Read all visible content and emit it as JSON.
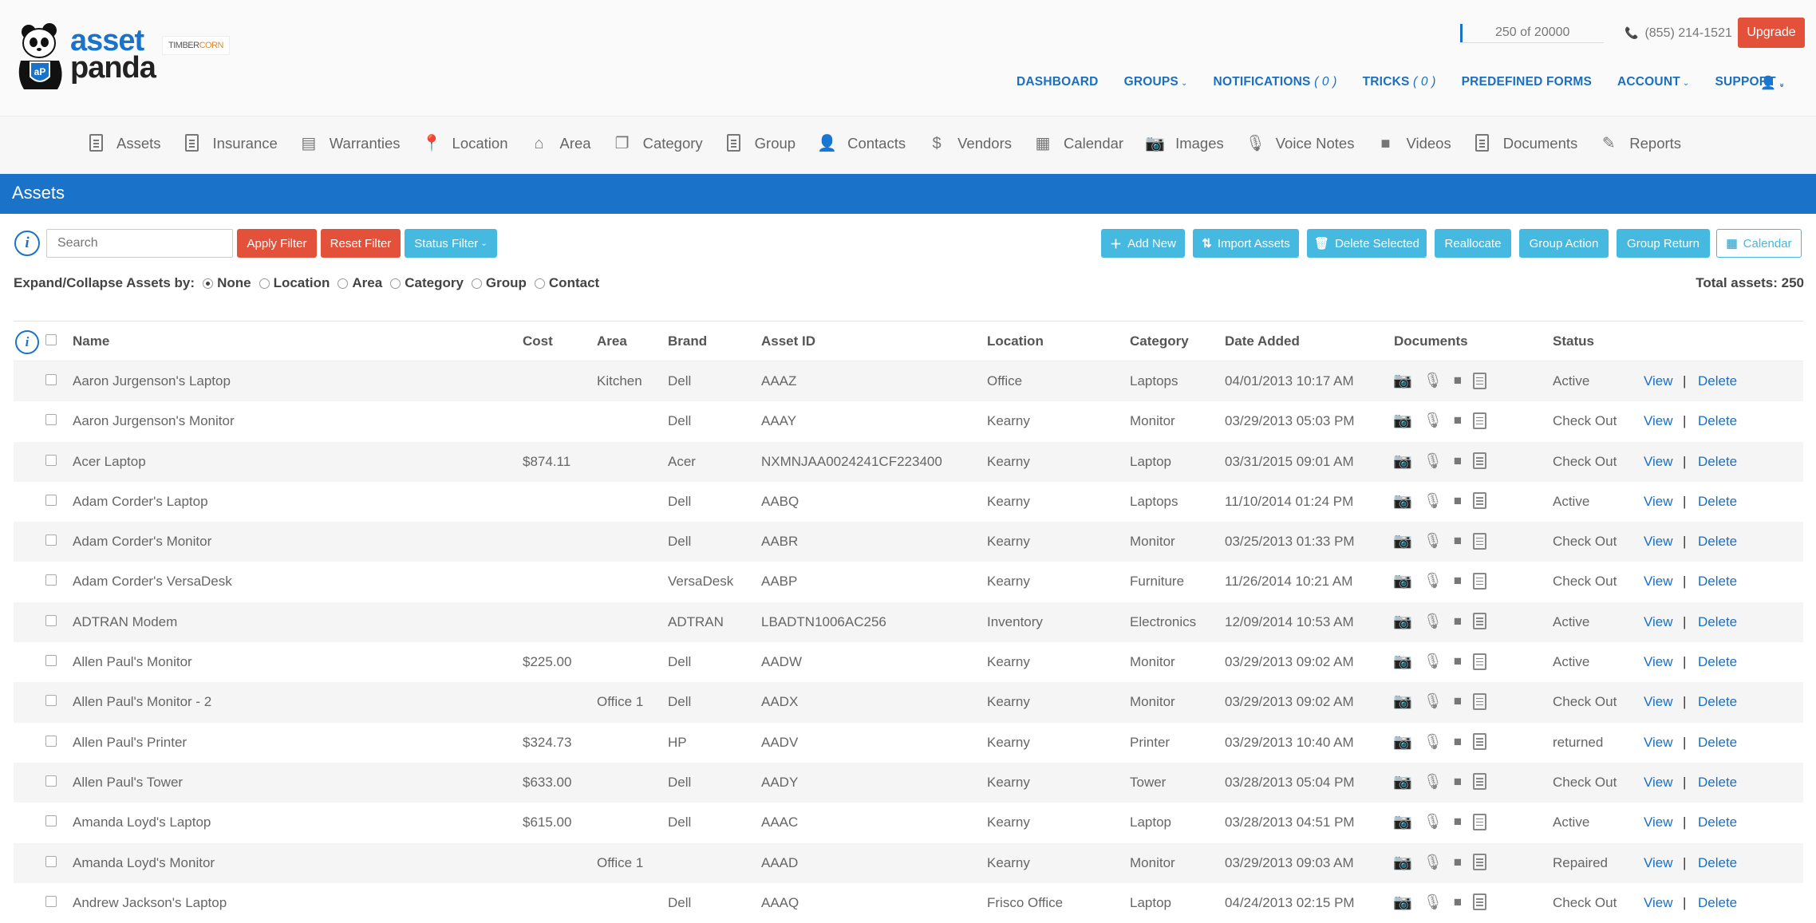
{
  "brand": {
    "asset": "asset",
    "panda": "panda",
    "partner_a": "TIMBER",
    "partner_b": "CORN"
  },
  "header": {
    "usage": "250 of 20000",
    "phone": "(855) 214-1521",
    "upgrade": "Upgrade"
  },
  "topnav": [
    {
      "label": "DASHBOARD",
      "count": "",
      "chevron": false
    },
    {
      "label": "GROUPS",
      "count": "",
      "chevron": true
    },
    {
      "label": "NOTIFICATIONS",
      "count": "( 0 )",
      "chevron": false
    },
    {
      "label": "TRICKS",
      "count": "( 0 )",
      "chevron": false
    },
    {
      "label": "PREDEFINED FORMS",
      "count": "",
      "chevron": false
    },
    {
      "label": "ACCOUNT",
      "count": "",
      "chevron": true
    },
    {
      "label": "SUPPORT",
      "count": "",
      "chevron": true
    }
  ],
  "modules": [
    {
      "label": "Assets",
      "icon": "document-icon"
    },
    {
      "label": "Insurance",
      "icon": "document-icon"
    },
    {
      "label": "Warranties",
      "icon": "certificate-icon"
    },
    {
      "label": "Location",
      "icon": "map-marker-icon"
    },
    {
      "label": "Area",
      "icon": "home-icon"
    },
    {
      "label": "Category",
      "icon": "category-icon"
    },
    {
      "label": "Group",
      "icon": "document-icon"
    },
    {
      "label": "Contacts",
      "icon": "user-icon"
    },
    {
      "label": "Vendors",
      "icon": "dollar-icon"
    },
    {
      "label": "Calendar",
      "icon": "calendar-icon"
    },
    {
      "label": "Images",
      "icon": "camera-icon"
    },
    {
      "label": "Voice Notes",
      "icon": "microphone-icon"
    },
    {
      "label": "Videos",
      "icon": "video-icon"
    },
    {
      "label": "Documents",
      "icon": "document-icon"
    },
    {
      "label": "Reports",
      "icon": "edit-icon"
    }
  ],
  "page_title": "Assets",
  "toolbar": {
    "search_placeholder": "Search",
    "apply_filter": "Apply Filter",
    "reset_filter": "Reset Filter",
    "status_filter": "Status Filter",
    "add_new": "Add New",
    "import_assets": "Import Assets",
    "delete_selected": "Delete Selected",
    "reallocate": "Reallocate",
    "group_action": "Group Action",
    "group_return": "Group Return",
    "calendar": "Calendar"
  },
  "expand": {
    "label": "Expand/Collapse Assets by:",
    "options": [
      "None",
      "Location",
      "Area",
      "Category",
      "Group",
      "Contact"
    ],
    "selected": "None"
  },
  "total": "Total assets: 250",
  "columns": [
    "Name",
    "Cost",
    "Area",
    "Brand",
    "Asset ID",
    "Location",
    "Category",
    "Date Added",
    "Documents",
    "Status"
  ],
  "actions": {
    "view": "View",
    "sep": "|",
    "delete": "Delete"
  },
  "rows": [
    {
      "name": "Aaron Jurgenson's Laptop",
      "cost": "",
      "area": "Kitchen",
      "brand": "Dell",
      "asset_id": "AAAZ",
      "location": "Office",
      "category": "Laptops",
      "date": "04/01/2013 10:17 AM",
      "image": true,
      "status": "Active"
    },
    {
      "name": "Aaron Jurgenson's Monitor",
      "cost": "",
      "area": "",
      "brand": "Dell",
      "asset_id": "AAAY",
      "location": "Kearny",
      "category": "Monitor",
      "date": "03/29/2013 05:03 PM",
      "image": true,
      "status": "Check Out"
    },
    {
      "name": "Acer Laptop",
      "cost": "$874.11",
      "area": "",
      "brand": "Acer",
      "asset_id": "NXMNJAA0024241CF223400",
      "location": "Kearny",
      "category": "Laptop",
      "date": "03/31/2015 09:01 AM",
      "image": false,
      "status": "Check Out"
    },
    {
      "name": "Adam Corder's Laptop",
      "cost": "",
      "area": "",
      "brand": "Dell",
      "asset_id": "AABQ",
      "location": "Kearny",
      "category": "Laptops",
      "date": "11/10/2014 01:24 PM",
      "image": false,
      "status": "Active"
    },
    {
      "name": "Adam Corder's Monitor",
      "cost": "",
      "area": "",
      "brand": "Dell",
      "asset_id": "AABR",
      "location": "Kearny",
      "category": "Monitor",
      "date": "03/25/2013 01:33 PM",
      "image": true,
      "status": "Check Out"
    },
    {
      "name": "Adam Corder's VersaDesk",
      "cost": "",
      "area": "",
      "brand": "VersaDesk",
      "asset_id": "AABP",
      "location": "Kearny",
      "category": "Furniture",
      "date": "11/26/2014 10:21 AM",
      "image": false,
      "status": "Check Out"
    },
    {
      "name": "ADTRAN Modem",
      "cost": "",
      "area": "",
      "brand": "ADTRAN",
      "asset_id": "LBADTN1006AC256",
      "location": "Inventory",
      "category": "Electronics",
      "date": "12/09/2014 10:53 AM",
      "image": false,
      "status": "Active"
    },
    {
      "name": "Allen Paul's Monitor",
      "cost": "$225.00",
      "area": "",
      "brand": "Dell",
      "asset_id": "AADW",
      "location": "Kearny",
      "category": "Monitor",
      "date": "03/29/2013 09:02 AM",
      "image": true,
      "status": "Active"
    },
    {
      "name": "Allen Paul's Monitor - 2",
      "cost": "",
      "area": "Office 1",
      "brand": "Dell",
      "asset_id": "AADX",
      "location": "Kearny",
      "category": "Monitor",
      "date": "03/29/2013 09:02 AM",
      "image": true,
      "status": "Check Out"
    },
    {
      "name": "Allen Paul's Printer",
      "cost": "$324.73",
      "area": "",
      "brand": "HP",
      "asset_id": "AADV",
      "location": "Kearny",
      "category": "Printer",
      "date": "03/29/2013 10:40 AM",
      "image": true,
      "status": "returned"
    },
    {
      "name": "Allen Paul's Tower",
      "cost": "$633.00",
      "area": "",
      "brand": "Dell",
      "asset_id": "AADY",
      "location": "Kearny",
      "category": "Tower",
      "date": "03/28/2013 05:04 PM",
      "image": true,
      "status": "Check Out"
    },
    {
      "name": "Amanda Loyd's Laptop",
      "cost": "$615.00",
      "area": "",
      "brand": "Dell",
      "asset_id": "AAAC",
      "location": "Kearny",
      "category": "Laptop",
      "date": "03/28/2013 04:51 PM",
      "image": true,
      "status": "Active"
    },
    {
      "name": "Amanda Loyd's Monitor",
      "cost": "",
      "area": "Office 1",
      "brand": "",
      "asset_id": "AAAD",
      "location": "Kearny",
      "category": "Monitor",
      "date": "03/29/2013 09:03 AM",
      "image": true,
      "status": "Repaired"
    },
    {
      "name": "Andrew Jackson's Laptop",
      "cost": "",
      "area": "",
      "brand": "Dell",
      "asset_id": "AAAQ",
      "location": "Frisco Office",
      "category": "Laptop",
      "date": "04/24/2013 02:15 PM",
      "image": true,
      "status": "Check Out"
    }
  ]
}
